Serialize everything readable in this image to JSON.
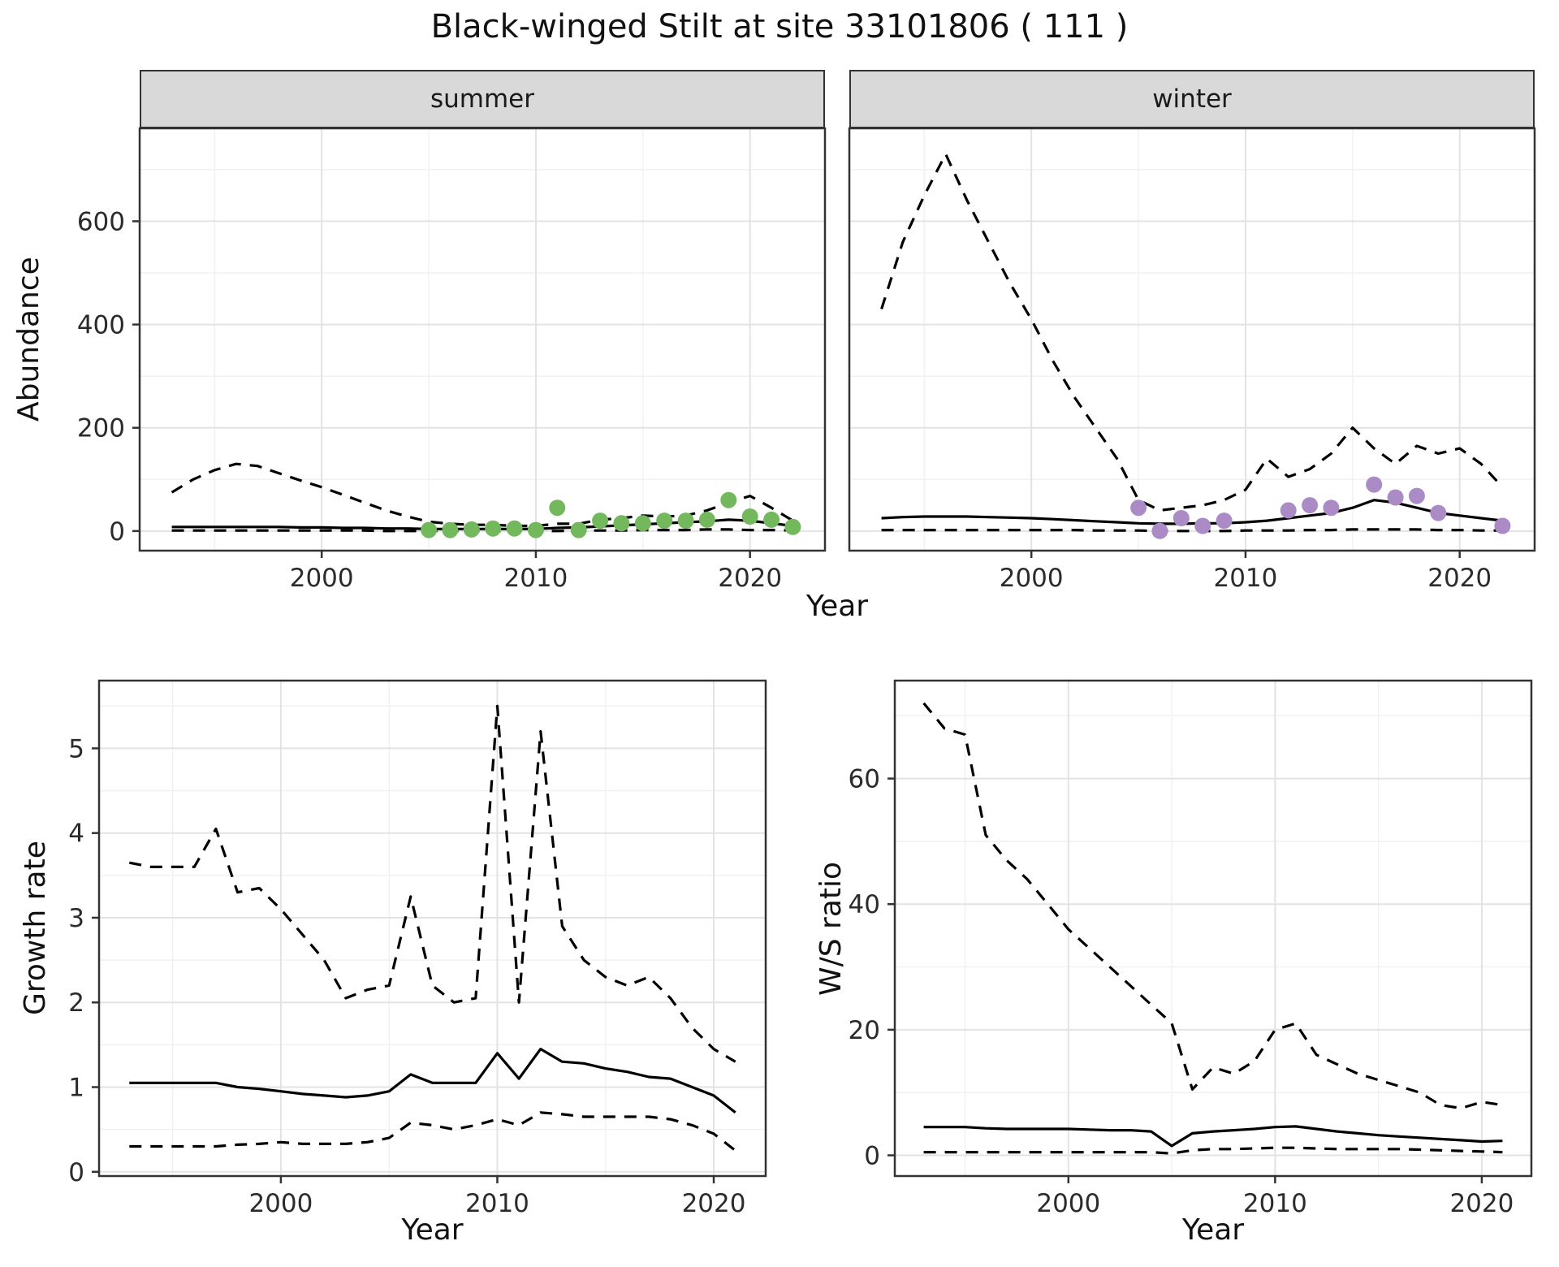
{
  "title": "Black-winged Stilt at site 33101806 ( 111 )",
  "colors": {
    "grid_major": "#e3e3e3",
    "grid_minor": "#f1f1f1",
    "panel_border": "#333333",
    "strip_bg": "#d9d9d9",
    "line": "#000000",
    "summer_points": "#74b85e",
    "winter_points": "#ab8bc6"
  },
  "chart_data": [
    {
      "id": "abundance-summer",
      "type": "line",
      "facet_label": "summer",
      "ylabel": "Abundance",
      "xlabel": "Year",
      "xlim": [
        1991.5,
        2023.5
      ],
      "ylim": [
        -38,
        780
      ],
      "xticks": [
        2000,
        2010,
        2020
      ],
      "yticks": [
        0,
        200,
        400,
        600
      ],
      "xminor": [
        1995,
        2005,
        2015
      ],
      "yminor": [
        100,
        300,
        500,
        700
      ],
      "x": [
        1993,
        1994,
        1995,
        1996,
        1997,
        1998,
        1999,
        2000,
        2001,
        2002,
        2003,
        2004,
        2005,
        2006,
        2007,
        2008,
        2009,
        2010,
        2011,
        2012,
        2013,
        2014,
        2015,
        2016,
        2017,
        2018,
        2019,
        2020,
        2021,
        2022
      ],
      "series": [
        {
          "name": "upper_ci",
          "style": "dashed",
          "values": [
            75,
            100,
            118,
            130,
            126,
            112,
            98,
            85,
            70,
            55,
            40,
            28,
            18,
            14,
            12,
            12,
            10,
            10,
            14,
            14,
            22,
            25,
            30,
            28,
            30,
            40,
            55,
            68,
            45,
            20
          ]
        },
        {
          "name": "median",
          "style": "solid",
          "values": [
            8,
            8,
            8,
            8,
            8,
            8,
            7,
            7,
            6,
            6,
            5,
            5,
            4,
            4,
            4,
            4,
            4,
            4,
            6,
            7,
            9,
            11,
            13,
            15,
            17,
            19,
            22,
            20,
            15,
            10
          ]
        },
        {
          "name": "lower_ci",
          "style": "dashed",
          "values": [
            1,
            1,
            1,
            1,
            1,
            1,
            1,
            1,
            1,
            1,
            0,
            0,
            0,
            0,
            0,
            0,
            0,
            0,
            0,
            1,
            1,
            1,
            2,
            2,
            2,
            3,
            3,
            2,
            2,
            1
          ]
        }
      ],
      "points": {
        "name": "observed-counts-summer",
        "color": "#74b85e",
        "x": [
          2005,
          2006,
          2007,
          2008,
          2009,
          2010,
          2011,
          2012,
          2013,
          2014,
          2015,
          2016,
          2017,
          2018,
          2019,
          2020,
          2021,
          2022
        ],
        "y": [
          2,
          2,
          3,
          5,
          5,
          2,
          45,
          2,
          20,
          15,
          15,
          20,
          20,
          22,
          60,
          28,
          22,
          8
        ]
      }
    },
    {
      "id": "abundance-winter",
      "type": "line",
      "facet_label": "winter",
      "ylabel": "Abundance",
      "xlabel": "Year",
      "xlim": [
        1991.5,
        2023.5
      ],
      "ylim": [
        -38,
        780
      ],
      "xticks": [
        2000,
        2010,
        2020
      ],
      "yticks": [
        0,
        200,
        400,
        600
      ],
      "xminor": [
        1995,
        2005,
        2015
      ],
      "yminor": [
        100,
        300,
        500,
        700
      ],
      "x": [
        1993,
        1994,
        1995,
        1996,
        1997,
        1998,
        1999,
        2000,
        2001,
        2002,
        2003,
        2004,
        2005,
        2006,
        2007,
        2008,
        2009,
        2010,
        2011,
        2012,
        2013,
        2014,
        2015,
        2016,
        2017,
        2018,
        2019,
        2020,
        2021,
        2022
      ],
      "series": [
        {
          "name": "upper_ci",
          "style": "dashed",
          "values": [
            430,
            560,
            650,
            730,
            640,
            560,
            480,
            410,
            330,
            260,
            200,
            140,
            60,
            40,
            45,
            50,
            60,
            80,
            140,
            105,
            120,
            150,
            200,
            160,
            130,
            165,
            150,
            160,
            130,
            85
          ]
        },
        {
          "name": "median",
          "style": "solid",
          "values": [
            25,
            27,
            28,
            28,
            28,
            27,
            26,
            25,
            23,
            21,
            19,
            17,
            15,
            14,
            14,
            15,
            15,
            17,
            20,
            25,
            30,
            35,
            45,
            60,
            55,
            45,
            35,
            30,
            25,
            20
          ]
        },
        {
          "name": "lower_ci",
          "style": "dashed",
          "values": [
            2,
            2,
            2,
            2,
            2,
            2,
            2,
            2,
            2,
            2,
            1,
            1,
            1,
            0,
            0,
            0,
            0,
            1,
            1,
            1,
            2,
            2,
            3,
            3,
            3,
            3,
            2,
            2,
            1,
            1
          ]
        }
      ],
      "points": {
        "name": "observed-counts-winter",
        "color": "#ab8bc6",
        "x": [
          2005,
          2006,
          2007,
          2008,
          2009,
          2012,
          2013,
          2014,
          2016,
          2017,
          2018,
          2019,
          2022
        ],
        "y": [
          45,
          0,
          25,
          10,
          20,
          40,
          50,
          45,
          90,
          65,
          68,
          35,
          10
        ]
      }
    },
    {
      "id": "growth-rate",
      "type": "line",
      "ylabel": "Growth rate",
      "xlabel": "Year",
      "xlim": [
        1991.6,
        2022.4
      ],
      "ylim": [
        -0.05,
        5.8
      ],
      "xticks": [
        2000,
        2010,
        2020
      ],
      "yticks": [
        0,
        1,
        2,
        3,
        4,
        5
      ],
      "xminor": [
        1995,
        2005,
        2015
      ],
      "yminor": [
        0.5,
        1.5,
        2.5,
        3.5,
        4.5,
        5.5
      ],
      "x": [
        1993,
        1994,
        1995,
        1996,
        1997,
        1998,
        1999,
        2000,
        2001,
        2002,
        2003,
        2004,
        2005,
        2006,
        2007,
        2008,
        2009,
        2010,
        2011,
        2012,
        2013,
        2014,
        2015,
        2016,
        2017,
        2018,
        2019,
        2020,
        2021
      ],
      "series": [
        {
          "name": "upper_ci",
          "style": "dashed",
          "values": [
            3.65,
            3.6,
            3.6,
            3.6,
            4.05,
            3.3,
            3.35,
            3.1,
            2.8,
            2.5,
            2.05,
            2.15,
            2.2,
            3.25,
            2.2,
            2.0,
            2.05,
            5.5,
            2.0,
            5.2,
            2.9,
            2.5,
            2.3,
            2.2,
            2.3,
            2.05,
            1.7,
            1.45,
            1.3
          ]
        },
        {
          "name": "median",
          "style": "solid",
          "values": [
            1.05,
            1.05,
            1.05,
            1.05,
            1.05,
            1.0,
            0.98,
            0.95,
            0.92,
            0.9,
            0.88,
            0.9,
            0.95,
            1.15,
            1.05,
            1.05,
            1.05,
            1.4,
            1.1,
            1.45,
            1.3,
            1.28,
            1.22,
            1.18,
            1.12,
            1.1,
            1.0,
            0.9,
            0.7
          ]
        },
        {
          "name": "lower_ci",
          "style": "dashed",
          "values": [
            0.3,
            0.3,
            0.3,
            0.3,
            0.3,
            0.32,
            0.33,
            0.35,
            0.33,
            0.33,
            0.33,
            0.35,
            0.4,
            0.58,
            0.55,
            0.5,
            0.55,
            0.62,
            0.55,
            0.7,
            0.68,
            0.65,
            0.65,
            0.65,
            0.65,
            0.62,
            0.55,
            0.45,
            0.25
          ]
        }
      ]
    },
    {
      "id": "ws-ratio",
      "type": "line",
      "ylabel": "W/S ratio",
      "xlabel": "Year",
      "xlim": [
        1991.6,
        2022.4
      ],
      "ylim": [
        -3.3,
        75.6
      ],
      "xticks": [
        2000,
        2010,
        2020
      ],
      "yticks": [
        0,
        20,
        40,
        60
      ],
      "xminor": [
        1995,
        2005,
        2015
      ],
      "yminor": [
        10,
        30,
        50,
        70
      ],
      "x": [
        1993,
        1994,
        1995,
        1996,
        1997,
        1998,
        1999,
        2000,
        2001,
        2002,
        2003,
        2004,
        2005,
        2006,
        2007,
        2008,
        2009,
        2010,
        2011,
        2012,
        2013,
        2014,
        2015,
        2016,
        2017,
        2018,
        2019,
        2020,
        2021
      ],
      "series": [
        {
          "name": "upper_ci",
          "style": "dashed",
          "values": [
            72,
            68,
            67,
            51,
            47,
            44,
            40,
            36,
            33,
            30,
            27,
            24,
            21,
            10.5,
            14,
            13,
            15,
            20,
            21,
            16,
            14.5,
            13,
            12,
            11,
            10,
            8,
            7.5,
            8.5,
            8
          ]
        },
        {
          "name": "median",
          "style": "solid",
          "values": [
            4.5,
            4.5,
            4.5,
            4.3,
            4.2,
            4.2,
            4.2,
            4.2,
            4.1,
            4.0,
            4.0,
            3.8,
            1.5,
            3.5,
            3.8,
            4.0,
            4.2,
            4.5,
            4.6,
            4.2,
            3.8,
            3.5,
            3.2,
            3.0,
            2.8,
            2.6,
            2.4,
            2.2,
            2.3
          ]
        },
        {
          "name": "lower_ci",
          "style": "dashed",
          "values": [
            0.5,
            0.5,
            0.5,
            0.5,
            0.5,
            0.5,
            0.5,
            0.5,
            0.5,
            0.5,
            0.5,
            0.5,
            0.3,
            0.8,
            1.0,
            1.0,
            1.1,
            1.2,
            1.2,
            1.1,
            1.0,
            1.0,
            1.0,
            1.0,
            0.9,
            0.8,
            0.7,
            0.6,
            0.5
          ]
        }
      ]
    }
  ]
}
